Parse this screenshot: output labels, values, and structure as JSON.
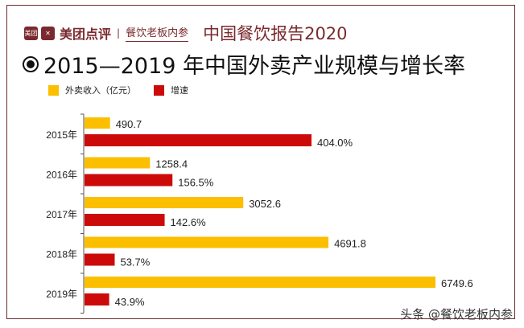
{
  "header": {
    "logo_text": "美团",
    "brand": "美团点评",
    "separator": "|",
    "partner": "餐饮老板内参",
    "report": "中国餐饮报告2020"
  },
  "title": "2015—2019 年中国外卖产业规模与增长率",
  "watermark": "头条 @餐饮老板内参",
  "colors": {
    "frame": "#6b2a2e",
    "revenue": "#fbbf00",
    "growth": "#cc0a0a"
  },
  "chart_data": {
    "type": "bar",
    "orientation": "horizontal",
    "title": "2015—2019 年中国外卖产业规模与增长率",
    "categories": [
      "2015年",
      "2016年",
      "2017年",
      "2018年",
      "2019年"
    ],
    "legend_placement": "top-left",
    "grid": false,
    "series": [
      {
        "name": "外卖收入（亿元）",
        "values": [
          490.7,
          1258.4,
          3052.6,
          4691.8,
          6749.6
        ],
        "labels": [
          "490.7",
          "1258.4",
          "3052.6",
          "4691.8",
          "6749.6"
        ],
        "color": "#fbbf00"
      },
      {
        "name": "增速",
        "values": [
          404.0,
          156.5,
          142.6,
          53.7,
          43.9
        ],
        "labels": [
          "404.0%",
          "156.5%",
          "142.6%",
          "53.7%",
          "43.9%"
        ],
        "color": "#cc0a0a"
      }
    ]
  }
}
